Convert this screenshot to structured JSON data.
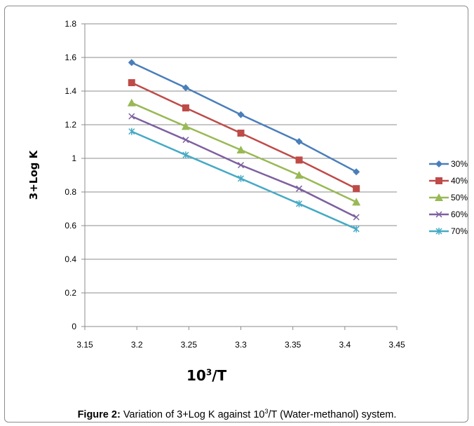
{
  "chart_data": {
    "type": "line",
    "xlabel_base": "10",
    "xlabel_sup": "3",
    "xlabel_tail": "/T",
    "ylabel": "3+Log K",
    "xlim": [
      3.15,
      3.45
    ],
    "ylim": [
      0,
      1.8
    ],
    "xticks": [
      "3.15",
      "3.2",
      "3.25",
      "3.3",
      "3.35",
      "3.4",
      "3.45"
    ],
    "yticks": [
      "0",
      "0.2",
      "0.4",
      "0.6",
      "0.8",
      "1",
      "1.2",
      "1.4",
      "1.6",
      "1.8"
    ],
    "grid": "horizontal",
    "legend_position": "right",
    "x": [
      3.195,
      3.247,
      3.3,
      3.356,
      3.411
    ],
    "series": [
      {
        "name": "30%",
        "marker": "diamond",
        "color": "#4a7ebb",
        "values": [
          1.57,
          1.42,
          1.26,
          1.1,
          0.92
        ]
      },
      {
        "name": "40%",
        "marker": "square",
        "color": "#be4b48",
        "values": [
          1.45,
          1.3,
          1.15,
          0.99,
          0.82
        ]
      },
      {
        "name": "50%",
        "marker": "triangle",
        "color": "#98b954",
        "values": [
          1.33,
          1.19,
          1.05,
          0.9,
          0.74
        ]
      },
      {
        "name": "60%",
        "marker": "x",
        "color": "#7d60a0",
        "values": [
          1.25,
          1.11,
          0.96,
          0.82,
          0.65
        ]
      },
      {
        "name": "70%",
        "marker": "star",
        "color": "#46aac5",
        "values": [
          1.16,
          1.02,
          0.88,
          0.73,
          0.58
        ]
      }
    ]
  },
  "caption": {
    "label": "Figure 2:",
    "text_before": " Variation of 3+Log K against 10",
    "sup": "3",
    "text_after": "/T (Water-methanol) system."
  }
}
